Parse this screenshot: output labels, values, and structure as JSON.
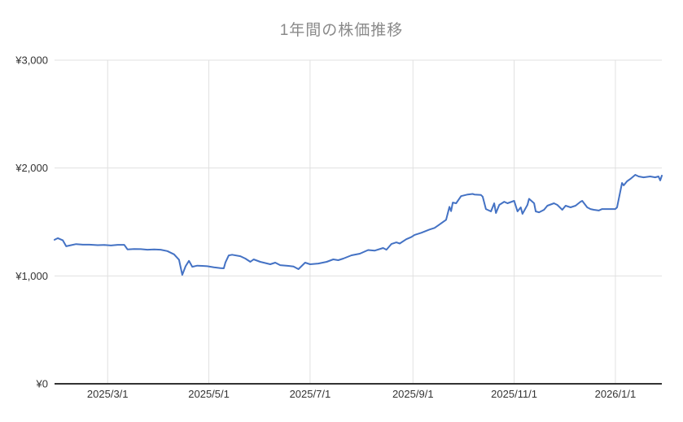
{
  "chart_data": {
    "type": "line",
    "title": "1年間の株価推移",
    "legend": "none",
    "grid": true,
    "colors": {
      "line": "#4472c4",
      "grid": "#e0e0e0",
      "axis": "#333333",
      "title_text": "#8a8a8a",
      "tick_text": "#333333",
      "background": "#ffffff"
    },
    "x_axis": {
      "range": [
        "2025/1/28",
        "2026/1/29"
      ],
      "ticks": [
        "2025/3/1",
        "2025/5/1",
        "2025/7/1",
        "2025/9/1",
        "2025/11/1",
        "2026/1/1"
      ]
    },
    "y_axis": {
      "range": [
        0,
        3000
      ],
      "ticks": [
        {
          "label": "¥0",
          "value": 0
        },
        {
          "label": "¥1,000",
          "value": 1000
        },
        {
          "label": "¥2,000",
          "value": 2000
        },
        {
          "label": "¥3,000",
          "value": 3000
        }
      ]
    },
    "series": [
      {
        "color": "#4472c4",
        "points": [
          [
            "2025/1/28",
            1335
          ],
          [
            "2025/1/30",
            1350
          ],
          [
            "2025/2/2",
            1330
          ],
          [
            "2025/2/4",
            1275
          ],
          [
            "2025/2/7",
            1285
          ],
          [
            "2025/2/10",
            1295
          ],
          [
            "2025/2/14",
            1290
          ],
          [
            "2025/2/18",
            1290
          ],
          [
            "2025/2/23",
            1285
          ],
          [
            "2025/2/27",
            1287
          ],
          [
            "2025/3/3",
            1282
          ],
          [
            "2025/3/7",
            1288
          ],
          [
            "2025/3/11",
            1288
          ],
          [
            "2025/3/13",
            1245
          ],
          [
            "2025/3/17",
            1250
          ],
          [
            "2025/3/21",
            1248
          ],
          [
            "2025/3/25",
            1243
          ],
          [
            "2025/3/29",
            1245
          ],
          [
            "2025/4/2",
            1243
          ],
          [
            "2025/4/6",
            1230
          ],
          [
            "2025/4/10",
            1200
          ],
          [
            "2025/4/13",
            1150
          ],
          [
            "2025/4/15",
            1010
          ],
          [
            "2025/4/17",
            1090
          ],
          [
            "2025/4/19",
            1140
          ],
          [
            "2025/4/21",
            1085
          ],
          [
            "2025/4/24",
            1095
          ],
          [
            "2025/4/27",
            1093
          ],
          [
            "2025/4/30",
            1090
          ],
          [
            "2025/5/4",
            1080
          ],
          [
            "2025/5/8",
            1072
          ],
          [
            "2025/5/10",
            1070
          ],
          [
            "2025/5/11",
            1125
          ],
          [
            "2025/5/13",
            1190
          ],
          [
            "2025/5/15",
            1196
          ],
          [
            "2025/5/20",
            1183
          ],
          [
            "2025/5/23",
            1161
          ],
          [
            "2025/5/26",
            1131
          ],
          [
            "2025/5/28",
            1153
          ],
          [
            "2025/6/1",
            1131
          ],
          [
            "2025/6/7",
            1108
          ],
          [
            "2025/6/10",
            1123
          ],
          [
            "2025/6/13",
            1100
          ],
          [
            "2025/6/18",
            1093
          ],
          [
            "2025/6/21",
            1088
          ],
          [
            "2025/6/24",
            1063
          ],
          [
            "2025/6/28",
            1123
          ],
          [
            "2025/7/1",
            1108
          ],
          [
            "2025/7/6",
            1115
          ],
          [
            "2025/7/11",
            1131
          ],
          [
            "2025/7/15",
            1153
          ],
          [
            "2025/7/18",
            1146
          ],
          [
            "2025/7/21",
            1161
          ],
          [
            "2025/7/26",
            1191
          ],
          [
            "2025/7/31",
            1206
          ],
          [
            "2025/8/5",
            1240
          ],
          [
            "2025/8/9",
            1235
          ],
          [
            "2025/8/14",
            1259
          ],
          [
            "2025/8/16",
            1243
          ],
          [
            "2025/8/19",
            1296
          ],
          [
            "2025/8/22",
            1311
          ],
          [
            "2025/8/24",
            1300
          ],
          [
            "2025/8/28",
            1340
          ],
          [
            "2025/8/31",
            1360
          ],
          [
            "2025/9/2",
            1380
          ],
          [
            "2025/9/6",
            1400
          ],
          [
            "2025/9/11",
            1430
          ],
          [
            "2025/9/14",
            1445
          ],
          [
            "2025/9/16",
            1465
          ],
          [
            "2025/9/21",
            1520
          ],
          [
            "2025/9/23",
            1640
          ],
          [
            "2025/9/24",
            1600
          ],
          [
            "2025/9/25",
            1680
          ],
          [
            "2025/9/27",
            1673
          ],
          [
            "2025/9/30",
            1740
          ],
          [
            "2025/10/4",
            1755
          ],
          [
            "2025/10/7",
            1760
          ],
          [
            "2025/10/8",
            1755
          ],
          [
            "2025/10/12",
            1750
          ],
          [
            "2025/10/13",
            1735
          ],
          [
            "2025/10/15",
            1620
          ],
          [
            "2025/10/18",
            1598
          ],
          [
            "2025/10/20",
            1673
          ],
          [
            "2025/10/21",
            1583
          ],
          [
            "2025/10/23",
            1658
          ],
          [
            "2025/10/26",
            1688
          ],
          [
            "2025/10/28",
            1673
          ],
          [
            "2025/11/1",
            1696
          ],
          [
            "2025/11/3",
            1598
          ],
          [
            "2025/11/5",
            1636
          ],
          [
            "2025/11/6",
            1575
          ],
          [
            "2025/11/9",
            1658
          ],
          [
            "2025/11/10",
            1715
          ],
          [
            "2025/11/13",
            1673
          ],
          [
            "2025/11/14",
            1598
          ],
          [
            "2025/11/16",
            1590
          ],
          [
            "2025/11/19",
            1613
          ],
          [
            "2025/11/21",
            1651
          ],
          [
            "2025/11/25",
            1673
          ],
          [
            "2025/11/27",
            1658
          ],
          [
            "2025/11/30",
            1613
          ],
          [
            "2025/12/2",
            1651
          ],
          [
            "2025/12/5",
            1636
          ],
          [
            "2025/12/8",
            1651
          ],
          [
            "2025/12/11",
            1688
          ],
          [
            "2025/12/12",
            1696
          ],
          [
            "2025/12/15",
            1636
          ],
          [
            "2025/12/17",
            1620
          ],
          [
            "2025/12/19",
            1613
          ],
          [
            "2025/12/22",
            1606
          ],
          [
            "2025/12/24",
            1620
          ],
          [
            "2025/12/28",
            1620
          ],
          [
            "2026/1/1",
            1620
          ],
          [
            "2026/1/2",
            1636
          ],
          [
            "2026/1/5",
            1862
          ],
          [
            "2026/1/6",
            1839
          ],
          [
            "2026/1/8",
            1877
          ],
          [
            "2026/1/10",
            1899
          ],
          [
            "2026/1/13",
            1937
          ],
          [
            "2026/1/15",
            1922
          ],
          [
            "2026/1/18",
            1914
          ],
          [
            "2026/1/22",
            1922
          ],
          [
            "2026/1/25",
            1914
          ],
          [
            "2026/1/27",
            1922
          ],
          [
            "2026/1/28",
            1885
          ],
          [
            "2026/1/29",
            1930
          ]
        ]
      }
    ]
  }
}
